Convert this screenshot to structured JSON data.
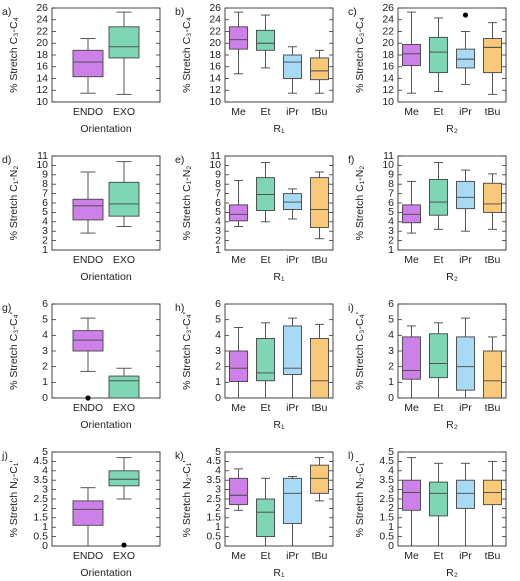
{
  "chart_data": [
    {
      "type": "box",
      "panel_label": "a)",
      "ylabel": "% Stretch C₃-C₄",
      "xlabel": "Orientation",
      "categories": [
        "ENDO",
        "EXO"
      ],
      "colors": [
        "#cc80e8",
        "#7fd6b4"
      ],
      "ylim": [
        10,
        26
      ],
      "yticks": [
        10,
        12,
        14,
        16,
        18,
        20,
        22,
        24,
        26
      ],
      "boxes": [
        {
          "whisker_low": 11.5,
          "q1": 14.3,
          "median": 16.8,
          "q3": 18.8,
          "whisker_high": 20.8
        },
        {
          "whisker_low": 11.3,
          "q1": 17.5,
          "median": 19.4,
          "q3": 22.8,
          "whisker_high": 25.3
        }
      ]
    },
    {
      "type": "box",
      "panel_label": "b)",
      "ylabel": "% Stretch C₃-C₄",
      "xlabel": "R₁",
      "categories": [
        "Me",
        "Et",
        "iPr",
        "tBu"
      ],
      "colors": [
        "#cc80e8",
        "#7fd6b4",
        "#a9daf5",
        "#f7c979"
      ],
      "ylim": [
        10,
        26
      ],
      "yticks": [
        10,
        12,
        14,
        16,
        18,
        20,
        22,
        24,
        26
      ],
      "boxes": [
        {
          "whisker_low": 14.8,
          "q1": 19.0,
          "median": 20.6,
          "q3": 22.8,
          "whisker_high": 25.3
        },
        {
          "whisker_low": 15.8,
          "q1": 18.8,
          "median": 20.0,
          "q3": 22.2,
          "whisker_high": 24.8
        },
        {
          "whisker_low": 11.5,
          "q1": 14.0,
          "median": 16.8,
          "q3": 18.0,
          "whisker_high": 19.4
        },
        {
          "whisker_low": 11.5,
          "q1": 13.8,
          "median": 15.3,
          "q3": 17.5,
          "whisker_high": 18.8
        }
      ]
    },
    {
      "type": "box",
      "panel_label": "c)",
      "ylabel": "% Stretch C₃-C₄",
      "xlabel": "R₂",
      "categories": [
        "Me",
        "Et",
        "iPr",
        "tBu"
      ],
      "colors": [
        "#cc80e8",
        "#7fd6b4",
        "#a9daf5",
        "#f7c979"
      ],
      "ylim": [
        10,
        26
      ],
      "yticks": [
        10,
        12,
        14,
        16,
        18,
        20,
        22,
        24,
        26
      ],
      "boxes": [
        {
          "whisker_low": 11.5,
          "q1": 16.2,
          "median": 18.2,
          "q3": 19.8,
          "whisker_high": 25.3
        },
        {
          "whisker_low": 11.8,
          "q1": 15.0,
          "median": 18.5,
          "q3": 21.0,
          "whisker_high": 24.3
        },
        {
          "whisker_low": 13.0,
          "q1": 15.8,
          "median": 17.3,
          "q3": 19.0,
          "whisker_high": 22.0,
          "outliers": [
            24.8
          ]
        },
        {
          "whisker_low": 11.3,
          "q1": 15.0,
          "median": 19.3,
          "q3": 20.8,
          "whisker_high": 23.5
        }
      ]
    },
    {
      "type": "box",
      "panel_label": "d)",
      "ylabel": "% Stretch C₁-N₂",
      "xlabel": "Orientation",
      "categories": [
        "ENDO",
        "EXO"
      ],
      "colors": [
        "#cc80e8",
        "#7fd6b4"
      ],
      "ylim": [
        1,
        11
      ],
      "yticks": [
        1,
        2,
        3,
        4,
        5,
        6,
        7,
        8,
        9,
        10,
        11
      ],
      "boxes": [
        {
          "whisker_low": 2.8,
          "q1": 4.2,
          "median": 5.7,
          "q3": 6.4,
          "whisker_high": 9.3
        },
        {
          "whisker_low": 3.5,
          "q1": 4.6,
          "median": 5.9,
          "q3": 8.2,
          "whisker_high": 10.4
        }
      ]
    },
    {
      "type": "box",
      "panel_label": "e)",
      "ylabel": "% Stretch C₁-N₂",
      "xlabel": "R₁",
      "categories": [
        "Me",
        "Et",
        "iPr",
        "tBu"
      ],
      "colors": [
        "#cc80e8",
        "#7fd6b4",
        "#a9daf5",
        "#f7c979"
      ],
      "ylim": [
        1,
        11
      ],
      "yticks": [
        1,
        2,
        3,
        4,
        5,
        6,
        7,
        8,
        9,
        10,
        11
      ],
      "boxes": [
        {
          "whisker_low": 3.5,
          "q1": 4.1,
          "median": 4.8,
          "q3": 5.8,
          "whisker_high": 8.4
        },
        {
          "whisker_low": 4.0,
          "q1": 5.2,
          "median": 6.9,
          "q3": 8.7,
          "whisker_high": 10.3
        },
        {
          "whisker_low": 4.3,
          "q1": 5.3,
          "median": 6.1,
          "q3": 7.0,
          "whisker_high": 7.5
        },
        {
          "whisker_low": 2.2,
          "q1": 3.4,
          "median": 5.3,
          "q3": 8.7,
          "whisker_high": 9.3
        }
      ]
    },
    {
      "type": "box",
      "panel_label": "f)",
      "ylabel": "% Stretch C₁-N₂",
      "xlabel": "R₂",
      "categories": [
        "Me",
        "Et",
        "iPr",
        "tBu"
      ],
      "colors": [
        "#cc80e8",
        "#7fd6b4",
        "#a9daf5",
        "#f7c979"
      ],
      "ylim": [
        1,
        11
      ],
      "yticks": [
        1,
        2,
        3,
        4,
        5,
        6,
        7,
        8,
        9,
        10,
        11
      ],
      "boxes": [
        {
          "whisker_low": 2.8,
          "q1": 3.9,
          "median": 4.8,
          "q3": 5.8,
          "whisker_high": 8.3
        },
        {
          "whisker_low": 3.2,
          "q1": 4.7,
          "median": 6.1,
          "q3": 8.5,
          "whisker_high": 10.3
        },
        {
          "whisker_low": 3.0,
          "q1": 5.4,
          "median": 6.6,
          "q3": 8.3,
          "whisker_high": 9.5
        },
        {
          "whisker_low": 3.2,
          "q1": 5.0,
          "median": 5.9,
          "q3": 8.1,
          "whisker_high": 9.1
        }
      ]
    },
    {
      "type": "box",
      "panel_label": "g)",
      "ylabel": "% Stretch C₃-C₄'",
      "xlabel": "Orientation",
      "categories": [
        "ENDO",
        "EXO"
      ],
      "colors": [
        "#cc80e8",
        "#7fd6b4"
      ],
      "ylim": [
        0,
        6
      ],
      "yticks": [
        0,
        1,
        2,
        3,
        4,
        5,
        6
      ],
      "boxes": [
        {
          "whisker_low": 1.7,
          "q1": 3.0,
          "median": 3.7,
          "q3": 4.3,
          "whisker_high": 5.1,
          "outliers": [
            0
          ]
        },
        {
          "whisker_low": 0,
          "q1": 0,
          "median": 1.1,
          "q3": 1.4,
          "whisker_high": 1.9
        }
      ]
    },
    {
      "type": "box",
      "panel_label": "h)",
      "ylabel": "% Stretch C₃-C₄'",
      "xlabel": "R₁",
      "categories": [
        "Me",
        "Et",
        "iPr",
        "tBu"
      ],
      "colors": [
        "#cc80e8",
        "#7fd6b4",
        "#a9daf5",
        "#f7c979"
      ],
      "ylim": [
        0,
        6
      ],
      "yticks": [
        0,
        1,
        2,
        3,
        4,
        5,
        6
      ],
      "boxes": [
        {
          "whisker_low": 0,
          "q1": 1.05,
          "median": 1.9,
          "q3": 3.0,
          "whisker_high": 4.5
        },
        {
          "whisker_low": 0,
          "q1": 1.1,
          "median": 1.6,
          "q3": 3.8,
          "whisker_high": 4.8
        },
        {
          "whisker_low": 0,
          "q1": 1.5,
          "median": 1.9,
          "q3": 4.6,
          "whisker_high": 5.1
        },
        {
          "whisker_low": 0,
          "q1": 0,
          "median": 1.1,
          "q3": 3.8,
          "whisker_high": 4.7
        }
      ]
    },
    {
      "type": "box",
      "panel_label": "i)",
      "ylabel": "% Stretch C₃-C₄'",
      "xlabel": "R₂",
      "categories": [
        "Me",
        "Et",
        "iPr",
        "tBu"
      ],
      "colors": [
        "#cc80e8",
        "#7fd6b4",
        "#a9daf5",
        "#f7c979"
      ],
      "ylim": [
        0,
        6
      ],
      "yticks": [
        0,
        1,
        2,
        3,
        4,
        5,
        6
      ],
      "boxes": [
        {
          "whisker_low": 0,
          "q1": 1.2,
          "median": 1.75,
          "q3": 3.9,
          "whisker_high": 4.6
        },
        {
          "whisker_low": 0,
          "q1": 1.3,
          "median": 2.2,
          "q3": 4.1,
          "whisker_high": 4.8
        },
        {
          "whisker_low": 0,
          "q1": 0.5,
          "median": 2.0,
          "q3": 3.9,
          "whisker_high": 5.1
        },
        {
          "whisker_low": 0,
          "q1": 0,
          "median": 1.1,
          "q3": 3.0,
          "whisker_high": 3.9
        }
      ]
    },
    {
      "type": "box",
      "panel_label": "j)",
      "ylabel": "% Stretch N₂-C₁'",
      "xlabel": "Orientation",
      "categories": [
        "ENDO",
        "EXO"
      ],
      "colors": [
        "#cc80e8",
        "#7fd6b4"
      ],
      "ylim": [
        0,
        5
      ],
      "yticks": [
        0,
        0.5,
        1,
        1.5,
        2,
        2.5,
        3,
        3.5,
        4,
        4.5,
        5
      ],
      "boxes": [
        {
          "whisker_low": 0,
          "q1": 1.1,
          "median": 1.95,
          "q3": 2.4,
          "whisker_high": 3.1
        },
        {
          "whisker_low": 2.5,
          "q1": 3.2,
          "median": 3.55,
          "q3": 4.0,
          "whisker_high": 4.7,
          "outliers": [
            0.05
          ]
        }
      ]
    },
    {
      "type": "box",
      "panel_label": "k)",
      "ylabel": "% Stretch N₂-C₁'",
      "xlabel": "R₁",
      "categories": [
        "Me",
        "Et",
        "iPr",
        "tBu"
      ],
      "colors": [
        "#cc80e8",
        "#7fd6b4",
        "#a9daf5",
        "#f7c979"
      ],
      "ylim": [
        0,
        5
      ],
      "yticks": [
        0,
        0.5,
        1,
        1.5,
        2,
        2.5,
        3,
        3.5,
        4,
        4.5,
        5
      ],
      "boxes": [
        {
          "whisker_low": 1.9,
          "q1": 2.2,
          "median": 2.7,
          "q3": 3.6,
          "whisker_high": 4.1
        },
        {
          "whisker_low": 0,
          "q1": 0.5,
          "median": 1.8,
          "q3": 2.5,
          "whisker_high": 3.6
        },
        {
          "whisker_low": 0,
          "q1": 1.2,
          "median": 2.8,
          "q3": 3.6,
          "whisker_high": 3.7
        },
        {
          "whisker_low": 2.4,
          "q1": 2.8,
          "median": 3.6,
          "q3": 4.3,
          "whisker_high": 4.7
        }
      ]
    },
    {
      "type": "box",
      "panel_label": "l)",
      "ylabel": "% Stretch N₂-C₁'",
      "xlabel": "R₂",
      "categories": [
        "Me",
        "Et",
        "iPr",
        "tBu"
      ],
      "colors": [
        "#cc80e8",
        "#7fd6b4",
        "#a9daf5",
        "#f7c979"
      ],
      "ylim": [
        0,
        5
      ],
      "yticks": [
        0,
        0.5,
        1,
        1.5,
        2,
        2.5,
        3,
        3.5,
        4,
        4.5,
        5
      ],
      "boxes": [
        {
          "whisker_low": 0,
          "q1": 1.9,
          "median": 2.85,
          "q3": 3.5,
          "whisker_high": 4.7
        },
        {
          "whisker_low": 0,
          "q1": 1.6,
          "median": 2.8,
          "q3": 3.4,
          "whisker_high": 4.4
        },
        {
          "whisker_low": 0,
          "q1": 2.0,
          "median": 2.8,
          "q3": 3.5,
          "whisker_high": 4.4
        },
        {
          "whisker_low": 0,
          "q1": 2.2,
          "median": 2.85,
          "q3": 3.5,
          "whisker_high": 4.5
        }
      ]
    }
  ]
}
